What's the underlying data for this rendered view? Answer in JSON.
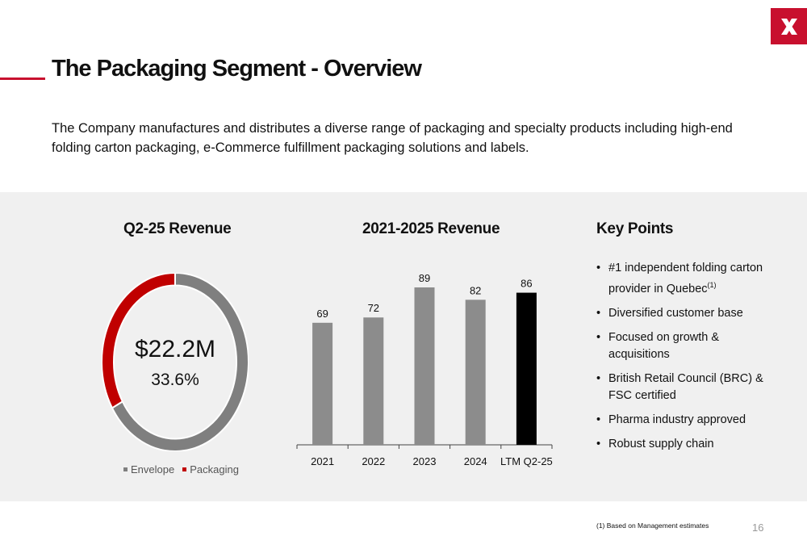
{
  "header": {
    "title": "The Packaging Segment - Overview",
    "brand_color": "#c8102e",
    "logo_icon": "x-logo-icon"
  },
  "intro": "The Company manufactures and distributes a diverse range of packaging and specialty products including high-end folding carton packaging, e-Commerce fulfillment packaging solutions and labels.",
  "donut": {
    "title": "Q2-25 Revenue",
    "value_label": "$22.2M",
    "percent_label": "33.6%"
  },
  "bar": {
    "title": "2021-2025 Revenue"
  },
  "key_points": {
    "title": "Key Points",
    "items": [
      {
        "text": "#1 independent folding carton provider in Quebec",
        "sup": "(1)"
      },
      {
        "text": "Diversified customer base",
        "sup": ""
      },
      {
        "text": "Focused on growth & acquisitions",
        "sup": ""
      },
      {
        "text": "British Retail Council (BRC) & FSC certified",
        "sup": ""
      },
      {
        "text": "Pharma industry approved",
        "sup": ""
      },
      {
        "text": "Robust supply chain",
        "sup": ""
      }
    ]
  },
  "footnote": "(1) Based on Management estimates",
  "page_number": "16",
  "chart_data": [
    {
      "type": "pie",
      "title": "Q2-25 Revenue",
      "categories": [
        "Envelope",
        "Packaging"
      ],
      "values": [
        66.4,
        33.6
      ],
      "colors": [
        "#7f7f7f",
        "#c00000"
      ],
      "legend": "bottom"
    },
    {
      "type": "bar",
      "title": "2021-2025 Revenue",
      "categories": [
        "2021",
        "2022",
        "2023",
        "2024",
        "LTM Q2-25"
      ],
      "values": [
        69,
        72,
        89,
        82,
        86
      ],
      "colors": [
        "#8c8c8c",
        "#8c8c8c",
        "#8c8c8c",
        "#8c8c8c",
        "#000000"
      ],
      "ylim": [
        0,
        89
      ],
      "grid": false
    }
  ]
}
